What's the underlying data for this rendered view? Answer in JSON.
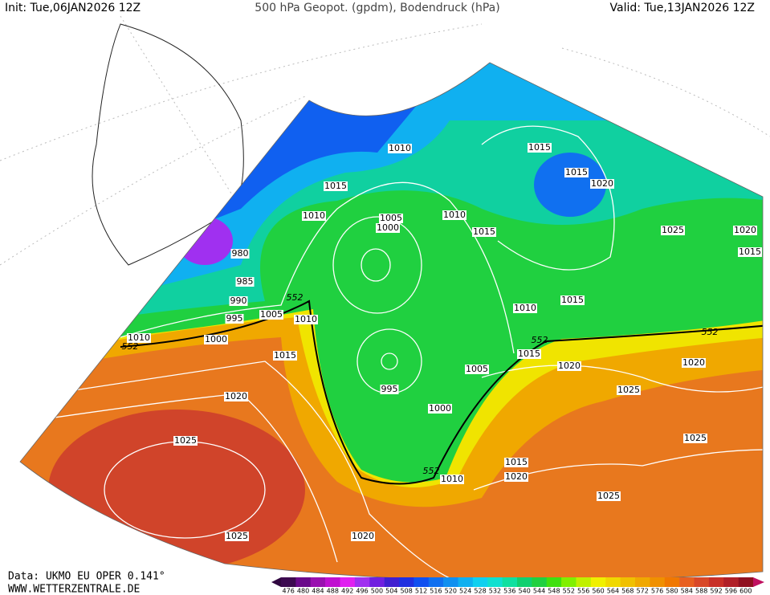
{
  "header": {
    "init": "Init: Tue,06JAN2026 12Z",
    "title": "500 hPa Geopot. (gpdm), Bodendruck (hPa)",
    "valid": "Valid: Tue,13JAN2026 12Z"
  },
  "footer": {
    "source": "Data: UKMO EU OPER 0.141°",
    "website": "WWW.WETTERZENTRALE.DE"
  },
  "contour_labels": [
    "1010",
    "1015",
    "1010",
    "1005",
    "1000",
    "1010",
    "1015",
    "1015",
    "1020",
    "1015",
    "1025",
    "1020",
    "1015",
    "980",
    "985",
    "990",
    "995",
    "1005",
    "1010",
    "1010",
    "552",
    "552",
    "1000",
    "1015",
    "1010",
    "1015",
    "552",
    "1015",
    "1020",
    "1005",
    "1020",
    "552",
    "995",
    "1025",
    "1000",
    "1020",
    "1025",
    "1025",
    "552",
    "1010",
    "1015",
    "1020",
    "1025",
    "1025",
    "1020"
  ],
  "colorbar": {
    "labels": [
      476,
      480,
      484,
      488,
      492,
      496,
      500,
      504,
      508,
      512,
      516,
      520,
      524,
      528,
      532,
      536,
      540,
      544,
      548,
      552,
      556,
      560,
      564,
      568,
      572,
      576,
      580,
      584,
      588,
      592,
      596,
      600
    ],
    "colors": [
      "#3c0a50",
      "#6a0a8a",
      "#9a10b0",
      "#c010d0",
      "#e020f0",
      "#a030f0",
      "#7020e0",
      "#4020d0",
      "#2030e0",
      "#1050f0",
      "#1070f0",
      "#1090f0",
      "#10b0f0",
      "#10d0f0",
      "#10e0d0",
      "#10e0a0",
      "#10d070",
      "#20d040",
      "#40e010",
      "#80f000",
      "#c0f000",
      "#f0f000",
      "#f0d800",
      "#f0c000",
      "#f0a800",
      "#f09000",
      "#f07800",
      "#e86020",
      "#d84828",
      "#c83028",
      "#b02028",
      "#901020"
    ]
  }
}
